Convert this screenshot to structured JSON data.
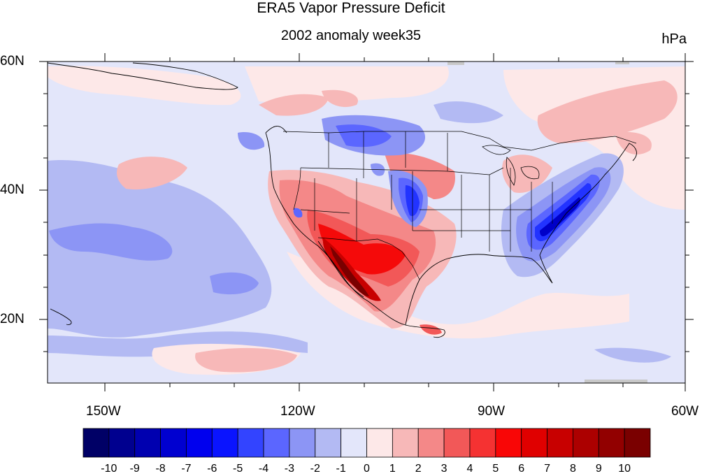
{
  "title": "ERA5 Vapor Pressure Deficit",
  "subtitle": "2002 anomaly week35",
  "units": "hPa",
  "lat_labels": [
    "60N",
    "40N",
    "20N"
  ],
  "lon_labels": [
    "150W",
    "120W",
    "90W",
    "60W"
  ],
  "colorbar": {
    "labels": [
      "-10",
      "-9",
      "-8",
      "-7",
      "-6",
      "-5",
      "-4",
      "-3",
      "-2",
      "-1",
      "0",
      "1",
      "2",
      "3",
      "4",
      "5",
      "6",
      "7",
      "8",
      "9",
      "10"
    ],
    "colors": [
      "#000066",
      "#00008f",
      "#0000b0",
      "#0000d0",
      "#0000ee",
      "#0a14ff",
      "#3344ff",
      "#5b66ff",
      "#8c95f5",
      "#b3baf3",
      "#e3e6fa",
      "#fde8e8",
      "#f7b8b8",
      "#f48888",
      "#f25858",
      "#f53232",
      "#f90606",
      "#e00000",
      "#c80000",
      "#ac0000",
      "#920000",
      "#7a0000"
    ]
  },
  "map_colors": {
    "ocean_base": "#e3e6fa",
    "neg_1": "#b3baf3",
    "neg_2": "#8c95f5",
    "neg_3": "#5b66ff",
    "neg_5": "#2233ff",
    "neg_7": "#0000c8",
    "pos_1": "#fde8e8",
    "pos_2": "#f7b8b8",
    "pos_3": "#f48888",
    "pos_4": "#f25858",
    "pos_6": "#f50a0a",
    "pos_8": "#c80000",
    "pos_10": "#7a0000",
    "missing": "#c8c8c8"
  }
}
